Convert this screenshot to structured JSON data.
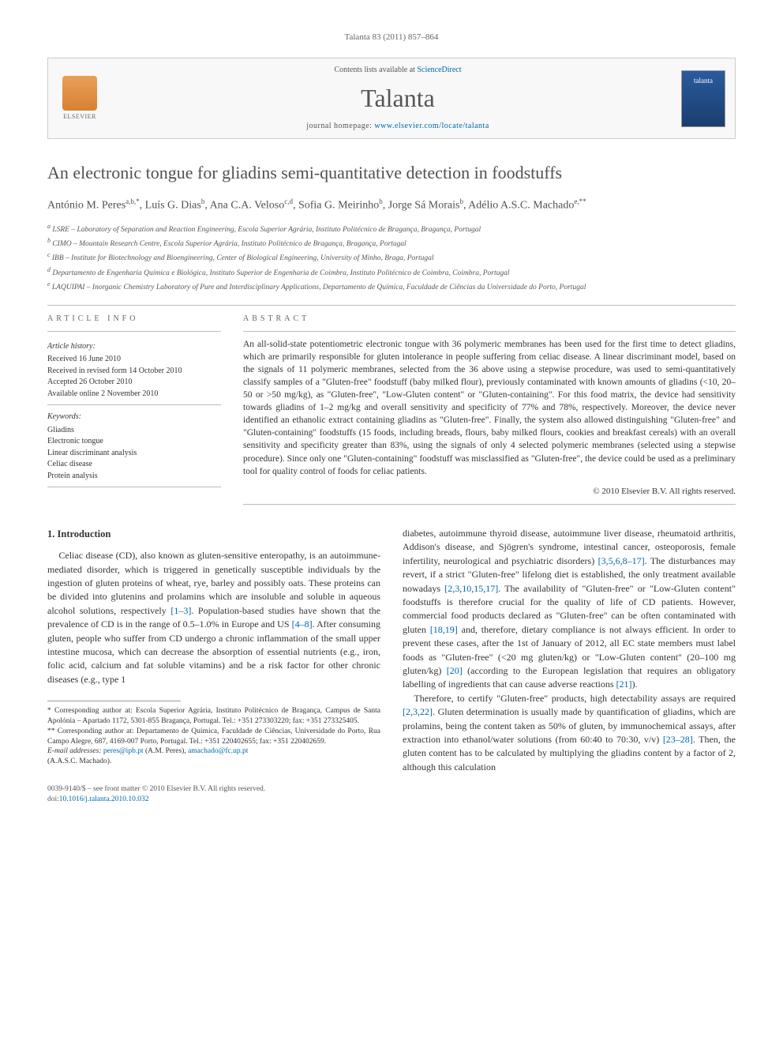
{
  "citation": "Talanta 83 (2011) 857–864",
  "header": {
    "contents_prefix": "Contents lists available at ",
    "contents_link": "ScienceDirect",
    "journal": "Talanta",
    "homepage_prefix": "journal homepage: ",
    "homepage_url": "www.elsevier.com/locate/talanta",
    "publisher_label": "ELSEVIER",
    "cover_text": "talanta"
  },
  "title": "An electronic tongue for gliadins semi-quantitative detection in foodstuffs",
  "authors_html": "António M. Peres<sup>a,b,*</sup>, Luís G. Dias<sup>b</sup>, Ana C.A. Veloso<sup>c,d</sup>, Sofia G. Meirinho<sup>b</sup>, Jorge Sá Morais<sup>b</sup>, Adélio A.S.C. Machado<sup>e,**</sup>",
  "affiliations": [
    "a LSRE – Laboratory of Separation and Reaction Engineering, Escola Superior Agrária, Instituto Politécnico de Bragança, Bragança, Portugal",
    "b CIMO – Mountain Research Centre, Escola Superior Agrária, Instituto Politécnico de Bragança, Bragança, Portugal",
    "c IBB – Institute for Biotechnology and Bioengineering, Center of Biological Engineering, University of Minho, Braga, Portugal",
    "d Departamento de Engenharia Química e Biológica, Instituto Superior de Engenharia de Coimbra, Instituto Politécnico de Coimbra, Coimbra, Portugal",
    "e LAQUIPAI – Inorganic Chemistry Laboratory of Pure and Interdisciplinary Applications, Departamento de Química, Faculdade de Ciências da Universidade do Porto, Portugal"
  ],
  "info": {
    "heading": "article info",
    "history_label": "Article history:",
    "history": [
      "Received 16 June 2010",
      "Received in revised form 14 October 2010",
      "Accepted 26 October 2010",
      "Available online 2 November 2010"
    ],
    "keywords_label": "Keywords:",
    "keywords": [
      "Gliadins",
      "Electronic tongue",
      "Linear discriminant analysis",
      "Celiac disease",
      "Protein analysis"
    ]
  },
  "abstract": {
    "heading": "abstract",
    "text": "An all-solid-state potentiometric electronic tongue with 36 polymeric membranes has been used for the first time to detect gliadins, which are primarily responsible for gluten intolerance in people suffering from celiac disease. A linear discriminant model, based on the signals of 11 polymeric membranes, selected from the 36 above using a stepwise procedure, was used to semi-quantitatively classify samples of a \"Gluten-free\" foodstuff (baby milked flour), previously contaminated with known amounts of gliadins (<10, 20–50 or >50 mg/kg), as \"Gluten-free\", \"Low-Gluten content\" or \"Gluten-containing\". For this food matrix, the device had sensitivity towards gliadins of 1–2 mg/kg and overall sensitivity and specificity of 77% and 78%, respectively. Moreover, the device never identified an ethanolic extract containing gliadins as \"Gluten-free\". Finally, the system also allowed distinguishing \"Gluten-free\" and \"Gluten-containing\" foodstuffs (15 foods, including breads, flours, baby milked flours, cookies and breakfast cereals) with an overall sensitivity and specificity greater than 83%, using the signals of only 4 selected polymeric membranes (selected using a stepwise procedure). Since only one \"Gluten-containing\" foodstuff was misclassified as \"Gluten-free\", the device could be used as a preliminary tool for quality control of foods for celiac patients.",
    "copyright": "© 2010 Elsevier B.V. All rights reserved."
  },
  "body": {
    "section_number": "1.",
    "section_title": "Introduction",
    "col1_p1": "Celiac disease (CD), also known as gluten-sensitive enteropathy, is an autoimmune-mediated disorder, which is triggered in genetically susceptible individuals by the ingestion of gluten proteins of wheat, rye, barley and possibly oats. These proteins can be divided into glutenins and prolamins which are insoluble and soluble in aqueous alcohol solutions, respectively [1–3]. Population-based studies have shown that the prevalence of CD is in the range of 0.5–1.0% in Europe and US [4–8]. After consuming gluten, people who suffer from CD undergo a chronic inflammation of the small upper intestine mucosa, which can decrease the absorption of essential nutrients (e.g., iron, folic acid, calcium and fat soluble vitamins) and be a risk factor for other chronic diseases (e.g., type 1",
    "col2_p1": "diabetes, autoimmune thyroid disease, autoimmune liver disease, rheumatoid arthritis, Addison's disease, and Sjögren's syndrome, intestinal cancer, osteoporosis, female infertility, neurological and psychiatric disorders) [3,5,6,8–17]. The disturbances may revert, if a strict \"Gluten-free\" lifelong diet is established, the only treatment available nowadays [2,3,10,15,17]. The availability of \"Gluten-free\" or \"Low-Gluten content\" foodstuffs is therefore crucial for the quality of life of CD patients. However, commercial food products declared as \"Gluten-free\" can be often contaminated with gluten [18,19] and, therefore, dietary compliance is not always efficient. In order to prevent these cases, after the 1st of January of 2012, all EC state members must label foods as \"Gluten-free\" (<20 mg gluten/kg) or \"Low-Gluten content\" (20–100 mg gluten/kg) [20] (according to the European legislation that requires an obligatory labelling of ingredients that can cause adverse reactions [21]).",
    "col2_p2": "Therefore, to certify \"Gluten-free\" products, high detectability assays are required [2,3,22]. Gluten determination is usually made by quantification of gliadins, which are prolamins, being the content taken as 50% of gluten, by immunochemical assays, after extraction into ethanol/water solutions (from 60:40 to 70:30, v/v) [23–28]. Then, the gluten content has to be calculated by multiplying the gliadins content by a factor of 2, although this calculation"
  },
  "footnotes": {
    "star1": "* Corresponding author at: Escola Superior Agrária, Instituto Politécnico de Bragança, Campus de Santa Apolónia – Apartado 1172, 5301-855 Bragança, Portugal. Tel.: +351 273303220; fax: +351 273325405.",
    "star2": "** Corresponding author at: Departamento de Química, Faculdade de Ciências, Universidade do Porto, Rua Campo Alegre, 687, 4169-007 Porto, Portugal. Tel.: +351 220402655; fax: +351 220402659.",
    "email_label": "E-mail addresses: ",
    "email1": "peres@ipb.pt",
    "email1_who": " (A.M. Peres), ",
    "email2": "amachado@fc.up.pt",
    "email2_who": " (A.A.S.C. Machado)."
  },
  "footer": {
    "line1": "0039-9140/$ – see front matter © 2010 Elsevier B.V. All rights reserved.",
    "doi_label": "doi:",
    "doi": "10.1016/j.talanta.2010.10.032"
  },
  "colors": {
    "link": "#0066aa",
    "text": "#333333",
    "muted": "#666666",
    "rule": "#bbbbbb"
  }
}
